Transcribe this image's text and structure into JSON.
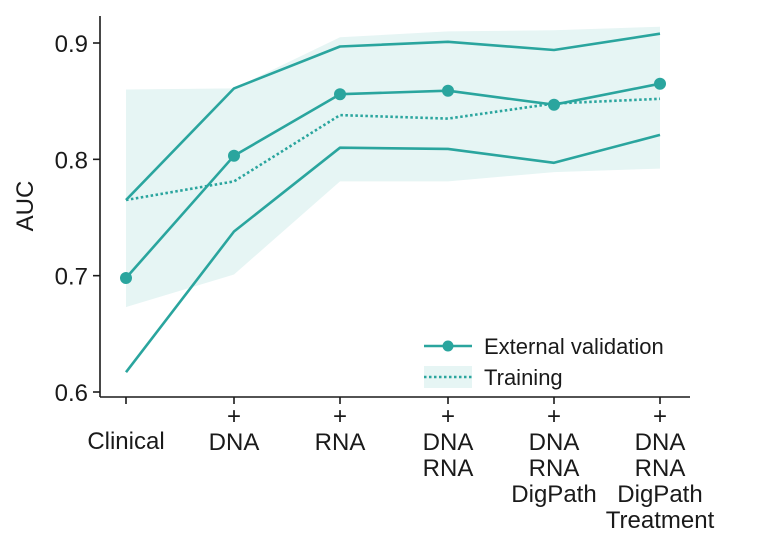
{
  "chart_data": {
    "type": "line",
    "title": "",
    "xlabel": "",
    "ylabel": "AUC",
    "ylim": [
      0.59,
      0.925
    ],
    "yticks": [
      0.6,
      0.7,
      0.8,
      0.9
    ],
    "ytick_labels": [
      "0.6",
      "0.7",
      "0.8",
      "0.9"
    ],
    "categories": [
      [
        "Clinical"
      ],
      [
        "+",
        "DNA"
      ],
      [
        "+",
        "RNA"
      ],
      [
        "+",
        "DNA",
        "RNA"
      ],
      [
        "+",
        "DNA",
        "RNA",
        "DigPath"
      ],
      [
        "+",
        "DNA",
        "RNA",
        "DigPath",
        "Treatment"
      ]
    ],
    "series": [
      {
        "name": "External validation",
        "values": [
          0.698,
          0.803,
          0.856,
          0.859,
          0.847,
          0.865
        ],
        "lower": [
          0.617,
          0.738,
          0.81,
          0.809,
          0.797,
          0.821
        ],
        "upper": [
          0.765,
          0.861,
          0.897,
          0.901,
          0.894,
          0.908
        ],
        "style": "solid-markers"
      },
      {
        "name": "Training",
        "values": [
          0.765,
          0.781,
          0.838,
          0.835,
          0.848,
          0.852
        ],
        "lower": [
          0.673,
          0.701,
          0.781,
          0.781,
          0.789,
          0.792
        ],
        "upper": [
          0.86,
          0.861,
          0.905,
          0.91,
          0.911,
          0.914
        ],
        "style": "dotted-band"
      }
    ],
    "legend_position": "bottom-right",
    "grid": false,
    "colors": {
      "line": "#2aa59e",
      "band": "#e6f5f4"
    }
  }
}
